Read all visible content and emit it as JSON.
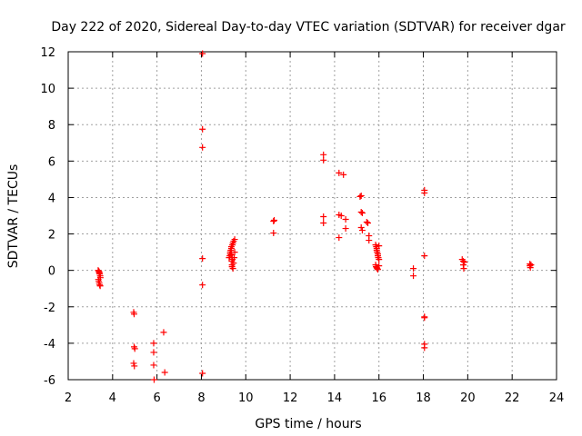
{
  "chart_data": {
    "type": "scatter",
    "title": "Day 222 of 2020, Sidereal Day-to-day VTEC variation (SDTVAR) for receiver dgar",
    "xlabel": "GPS time / hours",
    "ylabel": "SDTVAR / TECUs",
    "xlim": [
      2,
      24
    ],
    "ylim": [
      -6,
      12
    ],
    "x_ticks": [
      2,
      4,
      6,
      8,
      10,
      12,
      14,
      16,
      18,
      20,
      22,
      24
    ],
    "y_ticks": [
      -6,
      -4,
      -2,
      0,
      2,
      4,
      6,
      8,
      10,
      12
    ],
    "x_tick_labels": [
      "2",
      "4",
      "6",
      "8",
      "10",
      "12",
      "14",
      "16",
      "18",
      "20",
      "22",
      "24"
    ],
    "y_tick_labels": [
      "-6",
      "-4",
      "-2",
      "0",
      "2",
      "4",
      "6",
      "8",
      "10",
      "12"
    ],
    "grid": true,
    "marker": "plus",
    "color": "#ff0000",
    "series": [
      {
        "name": "SDTVAR",
        "points": [
          [
            3.35,
            0.0
          ],
          [
            3.38,
            -0.05
          ],
          [
            3.4,
            -0.1
          ],
          [
            3.42,
            -0.2
          ],
          [
            3.44,
            -0.3
          ],
          [
            3.45,
            -0.4
          ],
          [
            3.36,
            -0.5
          ],
          [
            3.38,
            -0.6
          ],
          [
            3.4,
            -0.7
          ],
          [
            3.42,
            -0.8
          ],
          [
            3.44,
            -0.85
          ],
          [
            3.4,
            -0.15
          ],
          [
            4.95,
            -2.3
          ],
          [
            4.97,
            -2.4
          ],
          [
            4.97,
            -4.2
          ],
          [
            5.0,
            -4.3
          ],
          [
            4.95,
            -5.1
          ],
          [
            4.98,
            -5.25
          ],
          [
            5.85,
            -4.0
          ],
          [
            5.85,
            -4.5
          ],
          [
            5.85,
            -5.2
          ],
          [
            5.87,
            -6.0
          ],
          [
            6.3,
            -3.4
          ],
          [
            6.35,
            -5.6
          ],
          [
            8.05,
            11.9
          ],
          [
            8.05,
            7.75
          ],
          [
            8.05,
            6.75
          ],
          [
            8.05,
            0.65
          ],
          [
            8.05,
            -0.8
          ],
          [
            8.05,
            -5.65
          ],
          [
            9.25,
            0.7
          ],
          [
            9.28,
            0.8
          ],
          [
            9.3,
            0.9
          ],
          [
            9.3,
            1.0
          ],
          [
            9.32,
            1.1
          ],
          [
            9.35,
            1.2
          ],
          [
            9.35,
            1.3
          ],
          [
            9.37,
            0.5
          ],
          [
            9.38,
            0.3
          ],
          [
            9.38,
            0.2
          ],
          [
            9.4,
            1.4
          ],
          [
            9.4,
            0.6
          ],
          [
            9.42,
            1.5
          ],
          [
            9.42,
            0.1
          ],
          [
            9.45,
            1.6
          ],
          [
            9.45,
            0.4
          ],
          [
            9.48,
            0.7
          ],
          [
            9.5,
            1.7
          ],
          [
            9.5,
            1.0
          ],
          [
            9.35,
            0.85
          ],
          [
            11.25,
            2.7
          ],
          [
            11.28,
            2.75
          ],
          [
            11.25,
            2.05
          ],
          [
            13.5,
            6.35
          ],
          [
            13.5,
            6.05
          ],
          [
            13.5,
            2.95
          ],
          [
            13.5,
            2.6
          ],
          [
            14.2,
            5.35
          ],
          [
            14.4,
            5.25
          ],
          [
            14.2,
            3.05
          ],
          [
            14.3,
            3.0
          ],
          [
            14.5,
            2.8
          ],
          [
            14.5,
            2.3
          ],
          [
            14.2,
            1.8
          ],
          [
            15.15,
            4.05
          ],
          [
            15.2,
            4.1
          ],
          [
            15.2,
            3.2
          ],
          [
            15.25,
            3.15
          ],
          [
            15.2,
            2.35
          ],
          [
            15.25,
            2.2
          ],
          [
            15.45,
            2.65
          ],
          [
            15.5,
            2.6
          ],
          [
            15.55,
            1.9
          ],
          [
            15.55,
            1.65
          ],
          [
            15.85,
            1.4
          ],
          [
            15.88,
            1.3
          ],
          [
            15.9,
            1.2
          ],
          [
            15.9,
            1.1
          ],
          [
            15.92,
            1.0
          ],
          [
            15.95,
            0.9
          ],
          [
            15.95,
            0.8
          ],
          [
            15.97,
            0.7
          ],
          [
            16.0,
            0.6
          ],
          [
            16.0,
            1.35
          ],
          [
            15.85,
            0.3
          ],
          [
            15.87,
            0.2
          ],
          [
            15.9,
            0.15
          ],
          [
            15.92,
            0.1
          ],
          [
            15.95,
            0.05
          ],
          [
            16.0,
            0.25
          ],
          [
            17.55,
            0.1
          ],
          [
            17.55,
            -0.3
          ],
          [
            18.05,
            4.4
          ],
          [
            18.05,
            4.25
          ],
          [
            18.05,
            0.8
          ],
          [
            18.05,
            -2.55
          ],
          [
            18.05,
            -2.6
          ],
          [
            18.05,
            -4.05
          ],
          [
            18.05,
            -4.25
          ],
          [
            19.75,
            0.6
          ],
          [
            19.8,
            0.5
          ],
          [
            19.8,
            0.3
          ],
          [
            19.82,
            0.1
          ],
          [
            19.85,
            0.45
          ],
          [
            22.8,
            0.35
          ],
          [
            22.8,
            0.25
          ],
          [
            22.82,
            0.15
          ],
          [
            22.85,
            0.3
          ]
        ]
      }
    ]
  }
}
